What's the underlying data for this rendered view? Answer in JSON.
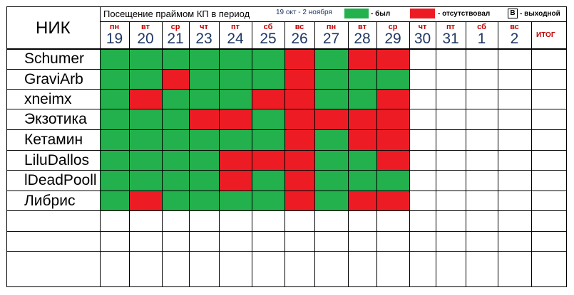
{
  "header": {
    "nick_col_label": "НИК",
    "title": "Посещение праймом КП в период",
    "period": "19 окт - 2 ноября",
    "total_label": "ИТОГ"
  },
  "legend": {
    "present_label": "- был",
    "absent_label": "- отсутствовал",
    "weekend_symbol": "В",
    "weekend_label": "- выходной"
  },
  "colors": {
    "present": "#22b14c",
    "absent": "#ed1c24",
    "empty": "#ffffff"
  },
  "days": [
    {
      "dow": "пн",
      "num": "19"
    },
    {
      "dow": "вт",
      "num": "20"
    },
    {
      "dow": "ср",
      "num": "21"
    },
    {
      "dow": "чт",
      "num": "23"
    },
    {
      "dow": "пт",
      "num": "24"
    },
    {
      "dow": "сб",
      "num": "25"
    },
    {
      "dow": "вс",
      "num": "26"
    },
    {
      "dow": "пн",
      "num": "27"
    },
    {
      "dow": "вт",
      "num": "28"
    },
    {
      "dow": "ср",
      "num": "29"
    },
    {
      "dow": "чт",
      "num": "30"
    },
    {
      "dow": "пт",
      "num": "31"
    },
    {
      "dow": "сб",
      "num": "1"
    },
    {
      "dow": "вс",
      "num": "2"
    }
  ],
  "players": [
    {
      "nick": "Schumer",
      "attendance": [
        "G",
        "G",
        "G",
        "G",
        "G",
        "G",
        "R",
        "G",
        "R",
        "R",
        "",
        "",
        "",
        ""
      ]
    },
    {
      "nick": "GraviArb",
      "attendance": [
        "G",
        "G",
        "R",
        "G",
        "G",
        "G",
        "R",
        "G",
        "G",
        "G",
        "",
        "",
        "",
        ""
      ]
    },
    {
      "nick": "xneimx",
      "attendance": [
        "G",
        "R",
        "G",
        "G",
        "G",
        "R",
        "R",
        "G",
        "G",
        "R",
        "",
        "",
        "",
        ""
      ]
    },
    {
      "nick": "Экзотика",
      "attendance": [
        "G",
        "G",
        "G",
        "R",
        "R",
        "G",
        "R",
        "R",
        "R",
        "R",
        "",
        "",
        "",
        ""
      ]
    },
    {
      "nick": "Кетамин",
      "attendance": [
        "G",
        "G",
        "G",
        "G",
        "G",
        "G",
        "R",
        "G",
        "R",
        "R",
        "",
        "",
        "",
        ""
      ]
    },
    {
      "nick": "LiluDallos",
      "attendance": [
        "G",
        "G",
        "G",
        "G",
        "R",
        "R",
        "R",
        "G",
        "G",
        "R",
        "",
        "",
        "",
        ""
      ]
    },
    {
      "nick": "lDeadPooll",
      "attendance": [
        "G",
        "G",
        "G",
        "G",
        "R",
        "G",
        "R",
        "G",
        "G",
        "G",
        "",
        "",
        "",
        ""
      ]
    },
    {
      "nick": "Либрис",
      "attendance": [
        "G",
        "R",
        "G",
        "G",
        "G",
        "G",
        "R",
        "G",
        "R",
        "R",
        "",
        "",
        "",
        ""
      ]
    },
    {
      "nick": "",
      "attendance": [
        "",
        "",
        "",
        "",
        "",
        "",
        "",
        "",
        "",
        "",
        "",
        "",
        "",
        ""
      ]
    },
    {
      "nick": "",
      "attendance": [
        "",
        "",
        "",
        "",
        "",
        "",
        "",
        "",
        "",
        "",
        "",
        "",
        "",
        ""
      ]
    },
    {
      "nick": "",
      "attendance": [
        "",
        "",
        "",
        "",
        "",
        "",
        "",
        "",
        "",
        "",
        "",
        "",
        "",
        ""
      ]
    }
  ]
}
